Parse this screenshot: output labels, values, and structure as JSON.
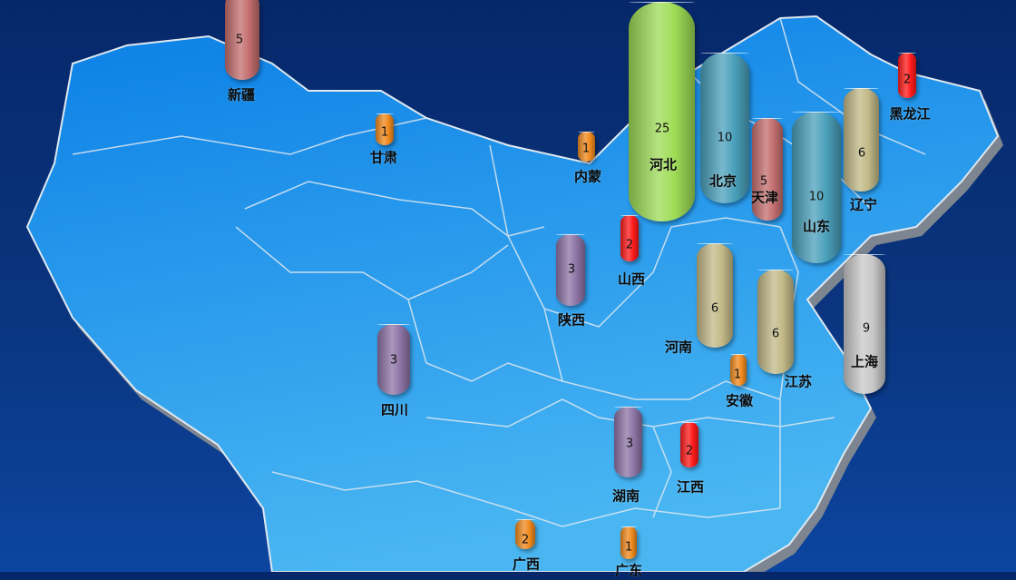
{
  "map": {
    "background_color": "#06286a",
    "land_color": "#1a8fe8",
    "border_color": "#d8e4ee"
  },
  "provinces": [
    {
      "name": "新疆",
      "value": 5,
      "color": "#c46e6e"
    },
    {
      "name": "甘肃",
      "value": 1,
      "color": "#f08a1e"
    },
    {
      "name": "内蒙",
      "value": 1,
      "color": "#f08a1e"
    },
    {
      "name": "河北",
      "value": 25,
      "color": "#9edc55"
    },
    {
      "name": "北京",
      "value": 10,
      "color": "#4aa0bb"
    },
    {
      "name": "天津",
      "value": 5,
      "color": "#c46e6e"
    },
    {
      "name": "山东",
      "value": 10,
      "color": "#4aa0bb"
    },
    {
      "name": "辽宁",
      "value": 6,
      "color": "#c2b987"
    },
    {
      "name": "黑龙江",
      "value": 2,
      "color": "#ff1a1a"
    },
    {
      "name": "山西",
      "value": 2,
      "color": "#ff1a1a"
    },
    {
      "name": "陕西",
      "value": 3,
      "color": "#8d74a6"
    },
    {
      "name": "河南",
      "value": 6,
      "color": "#c2b987"
    },
    {
      "name": "江苏",
      "value": 6,
      "color": "#c2b987"
    },
    {
      "name": "上海",
      "value": 9,
      "color": "#c8c8c8"
    },
    {
      "name": "安徽",
      "value": 1,
      "color": "#f08a1e"
    },
    {
      "name": "四川",
      "value": 3,
      "color": "#8d74a6"
    },
    {
      "name": "湖南",
      "value": 3,
      "color": "#8d74a6"
    },
    {
      "name": "江西",
      "value": 2,
      "color": "#ff1a1a"
    },
    {
      "name": "广西",
      "value": 2,
      "color": "#f08a1e"
    },
    {
      "name": "广东",
      "value": 1,
      "color": "#f08a1e"
    }
  ]
}
